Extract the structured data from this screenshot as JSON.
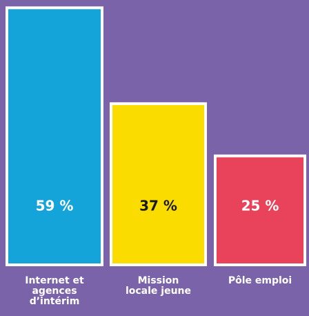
{
  "chart_data": {
    "type": "bar",
    "categories": [
      "Internet et agences d’intérim",
      "Mission locale jeune",
      "Pôle emploi"
    ],
    "values": [
      59,
      37,
      25
    ],
    "value_labels": [
      "59 %",
      "37 %",
      "25 %"
    ],
    "colors": [
      "#15a4da",
      "#fbdc00",
      "#e8435a"
    ],
    "value_label_colors": [
      "#ffffff",
      "#1a1a1a",
      "#ffffff"
    ],
    "background": "#7b63a9"
  }
}
